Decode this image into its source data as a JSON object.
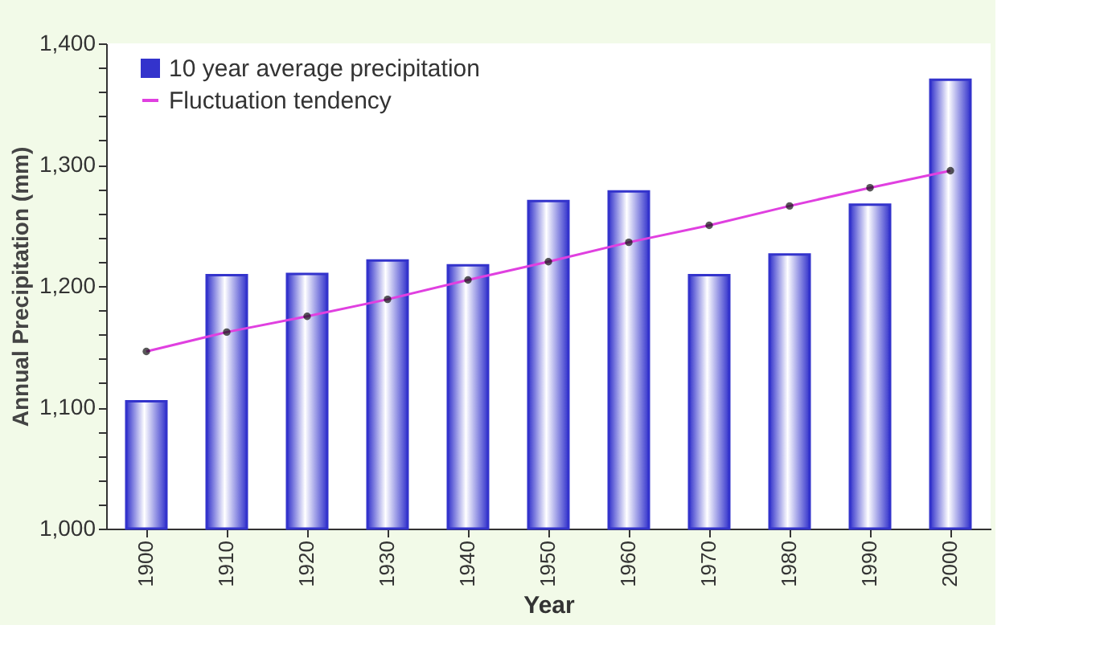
{
  "chart_data": {
    "type": "bar",
    "xlabel": "Year",
    "ylabel": "Annual Precipitation (mm)",
    "categories": [
      "1900",
      "1910",
      "1920",
      "1930",
      "1940",
      "1950",
      "1960",
      "1970",
      "1980",
      "1990",
      "2000"
    ],
    "series": [
      {
        "name": "10 year average precipitation",
        "color": "#3333cc",
        "values": [
          1105,
          1209,
          1210,
          1221,
          1217,
          1270,
          1278,
          1209,
          1226,
          1267,
          1370
        ]
      },
      {
        "name": "Fluctuation tendency",
        "type": "line",
        "color": "#e040e0",
        "marker": "circle",
        "values": [
          1146,
          1162,
          1175,
          1189,
          1205,
          1220,
          1236,
          1250,
          1266,
          1281,
          1295
        ]
      }
    ],
    "ylim": [
      1000,
      1400
    ],
    "yticks": [
      {
        "value": 1000,
        "label": "1,000"
      },
      {
        "value": 1020,
        "label": null
      },
      {
        "value": 1040,
        "label": null
      },
      {
        "value": 1060,
        "label": null
      },
      {
        "value": 1080,
        "label": null
      },
      {
        "value": 1100,
        "label": "1,100"
      },
      {
        "value": 1120,
        "label": null
      },
      {
        "value": 1140,
        "label": null
      },
      {
        "value": 1160,
        "label": null
      },
      {
        "value": 1180,
        "label": null
      },
      {
        "value": 1200,
        "label": "1,200"
      },
      {
        "value": 1220,
        "label": null
      },
      {
        "value": 1240,
        "label": null
      },
      {
        "value": 1260,
        "label": null
      },
      {
        "value": 1280,
        "label": null
      },
      {
        "value": 1300,
        "label": "1,300"
      },
      {
        "value": 1320,
        "label": null
      },
      {
        "value": 1340,
        "label": null
      },
      {
        "value": 1360,
        "label": null
      },
      {
        "value": 1380,
        "label": null
      },
      {
        "value": 1400,
        "label": "1,400"
      }
    ],
    "grid": false,
    "legend": "top left"
  }
}
